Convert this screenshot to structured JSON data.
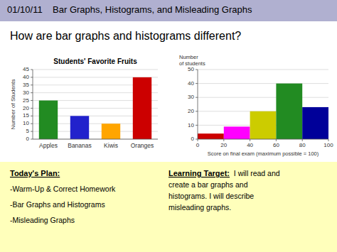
{
  "header": "01/10/11    Bar Graphs, Histograms, and Misleading Graphs",
  "question": "How are bar graphs and histograms different?",
  "notes": [
    {
      "title": "Today's Plan:",
      "items": [
        "-Warm-Up & Correct Homework",
        "-Bar Graphs and Histograms",
        "-Misleading Graphs"
      ]
    },
    {
      "title": "Learning Target:",
      "text": "  I will read and\ncreate a bar graphs and\nhistograms. I will describe\nmisleading graphs."
    }
  ],
  "chart_data": [
    {
      "type": "bar",
      "title": "Students' Favorite Fruits",
      "categories": [
        "Apples",
        "Bananas",
        "Kiwis",
        "Oranges"
      ],
      "values": [
        25,
        15,
        10,
        40
      ],
      "colors": [
        "#228B22",
        "#2222cc",
        "#FFA500",
        "#cc0000"
      ],
      "ylabel": "Number of Students",
      "ylim": [
        0,
        45
      ],
      "yticks": [
        0,
        5,
        10,
        15,
        20,
        25,
        30,
        35,
        40,
        45
      ],
      "grid": true
    },
    {
      "type": "histogram",
      "bins": [
        0,
        20,
        40,
        60,
        80,
        100
      ],
      "values": [
        4,
        9,
        20,
        40,
        23
      ],
      "colors": [
        "#cc0000",
        "#ff00ff",
        "#cccc00",
        "#228B22",
        "#000099"
      ],
      "xlabel": "Score on final exam (maximum possible = 100)",
      "ylabel": "Number\nof students",
      "xlim": [
        0,
        100
      ],
      "xticks": [
        0,
        20,
        40,
        60,
        80,
        100
      ],
      "ylim": [
        0,
        50
      ],
      "yticks": [
        0,
        10,
        20,
        30,
        40,
        50
      ],
      "grid": true
    }
  ]
}
